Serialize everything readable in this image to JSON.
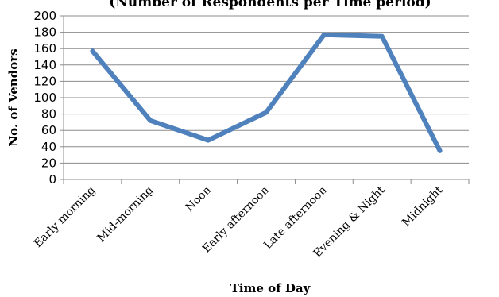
{
  "chart_data": {
    "type": "line",
    "title": "(Number of Respondents per Time period)",
    "xlabel": "Time of Day",
    "ylabel": "No. of Vendors",
    "categories": [
      "Early morning",
      "Mid-morning",
      "Noon",
      "Early afternoon",
      "Late afternoon",
      "Evening & Night",
      "Midnight"
    ],
    "series": [
      {
        "values": [
          157,
          72,
          48,
          82,
          177,
          175,
          35
        ],
        "color": "#4f81bd"
      }
    ],
    "ylim": [
      0,
      200
    ],
    "yticks": [
      0,
      20,
      40,
      60,
      80,
      100,
      120,
      140,
      160,
      180,
      200
    ],
    "grid": true,
    "legend": "none"
  }
}
